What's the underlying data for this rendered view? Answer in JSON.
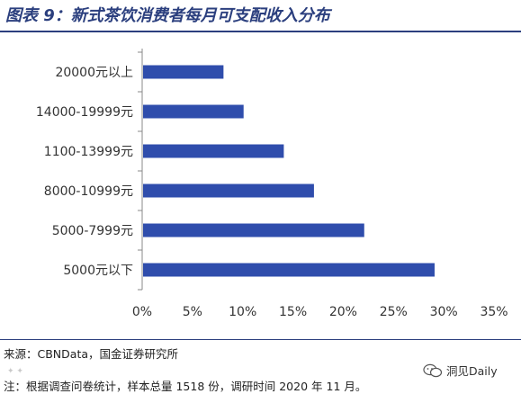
{
  "figure": {
    "title": "图表 9：新式茶饮消费者每月可支配收入分布",
    "source": "来源：CBNData，国金证券研究所",
    "note": "注：根据调查问卷统计，样本总量 1518 份，调研时间 2020 年 11 月。",
    "watermark": "洞见Daily",
    "watermark_icon": "wechat-icon"
  },
  "colors": {
    "bar": "#2f4dac",
    "title": "#2b3f7e",
    "axis": "#888888"
  },
  "chart_data": {
    "type": "bar",
    "orientation": "horizontal",
    "categories": [
      "20000元以上",
      "14000-19999元",
      "1100-13999元",
      "8000-10999元",
      "5000-7999元",
      "5000元以下"
    ],
    "values": [
      8,
      10,
      14,
      17,
      22,
      29
    ],
    "xlim": [
      0,
      35
    ],
    "x_ticks": [
      "0%",
      "5%",
      "10%",
      "15%",
      "20%",
      "25%",
      "30%",
      "35%"
    ],
    "value_unit": "%",
    "grid": false,
    "legend": "none",
    "title": "",
    "xlabel": "",
    "ylabel": ""
  }
}
